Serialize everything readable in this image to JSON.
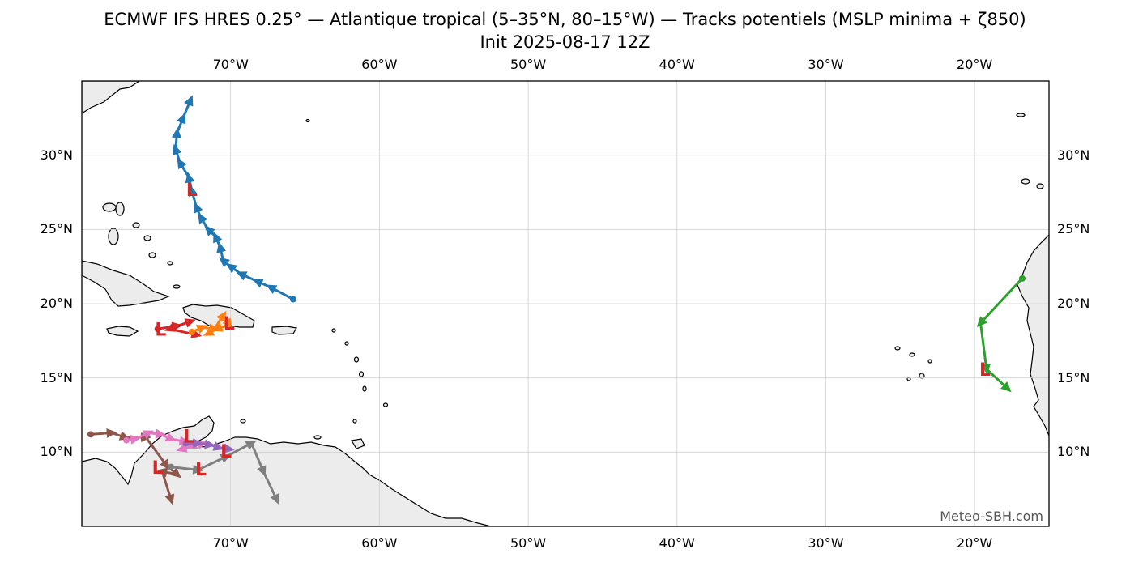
{
  "title": {
    "line1": "ECMWF IFS HRES 0.25° — Atlantique tropical (5–35°N, 80–15°W) — Tracks potentiels (MSLP minima + ζ850)",
    "line2": "Init 2025-08-17 12Z"
  },
  "map": {
    "extent": {
      "lon": [
        -80,
        -15
      ],
      "lat": [
        5,
        35
      ]
    },
    "land_color": "#ececec",
    "coast_color": "#000000",
    "grid_color": "#d0d0d0",
    "lon_ticks": [
      {
        "lon": -70,
        "label": "70°W"
      },
      {
        "lon": -60,
        "label": "60°W"
      },
      {
        "lon": -50,
        "label": "50°W"
      },
      {
        "lon": -40,
        "label": "40°W"
      },
      {
        "lon": -30,
        "label": "30°W"
      },
      {
        "lon": -20,
        "label": "20°W"
      }
    ],
    "lat_ticks": [
      {
        "lat": 30,
        "label": "30°N"
      },
      {
        "lat": 25,
        "label": "25°N"
      },
      {
        "lat": 20,
        "label": "20°N"
      },
      {
        "lat": 15,
        "label": "15°N"
      },
      {
        "lat": 10,
        "label": "10°N"
      }
    ],
    "low_marker": {
      "symbol": "L",
      "color": "#d62728"
    },
    "credit": "Meteo-SBH.com"
  },
  "tracks": [
    {
      "color": "#1f77b4",
      "low": [
        -72.6,
        27.6
      ],
      "points": [
        [
          -65.8,
          20.3
        ],
        [
          -67.3,
          21.1
        ],
        [
          -68.2,
          21.5
        ],
        [
          -69.3,
          22.0
        ],
        [
          -70.0,
          22.5
        ],
        [
          -70.5,
          22.9
        ],
        [
          -70.7,
          23.8
        ],
        [
          -71.0,
          24.5
        ],
        [
          -71.5,
          25.0
        ],
        [
          -72.0,
          25.8
        ],
        [
          -72.3,
          26.5
        ],
        [
          -72.6,
          27.6
        ],
        [
          -72.8,
          28.5
        ],
        [
          -73.4,
          29.5
        ],
        [
          -73.7,
          30.4
        ],
        [
          -73.6,
          31.5
        ],
        [
          -73.2,
          32.5
        ],
        [
          -72.7,
          33.7
        ]
      ]
    },
    {
      "color": "#d62728",
      "low": [
        -74.7,
        18.2
      ],
      "points": [
        [
          -74.9,
          18.3
        ],
        [
          -73.6,
          18.5
        ],
        [
          -72.7,
          18.8
        ],
        [
          -74.1,
          18.3
        ],
        [
          -72.3,
          17.9
        ]
      ]
    },
    {
      "color": "#ff7f0e",
      "low": [
        -70.1,
        18.6
      ],
      "points": [
        [
          -72.6,
          18.1
        ],
        [
          -71.9,
          18.4
        ],
        [
          -71.1,
          18.3
        ],
        [
          -70.5,
          19.2
        ],
        [
          -70.1,
          18.6
        ],
        [
          -70.9,
          18.3
        ],
        [
          -71.5,
          18.0
        ]
      ]
    },
    {
      "color": "#2ca02c",
      "low": [
        -19.3,
        15.5
      ],
      "points": [
        [
          -16.8,
          21.7
        ],
        [
          -19.6,
          18.7
        ],
        [
          -19.2,
          15.6
        ],
        [
          -17.8,
          14.3
        ]
      ]
    },
    {
      "color": "#8c564b",
      "low": [
        -74.9,
        8.9
      ],
      "points": [
        [
          -79.4,
          11.2
        ],
        [
          -78.0,
          11.3
        ],
        [
          -77.1,
          11.0
        ],
        [
          -75.7,
          11.0
        ],
        [
          -74.3,
          9.1
        ],
        [
          -73.6,
          8.5
        ],
        [
          -74.6,
          8.7
        ],
        [
          -74.0,
          6.8
        ]
      ]
    },
    {
      "color": "#e377c2",
      "low": [
        -72.8,
        11.0
      ],
      "points": [
        [
          -77.0,
          10.8
        ],
        [
          -76.4,
          10.9
        ],
        [
          -75.5,
          11.3
        ],
        [
          -74.7,
          11.2
        ],
        [
          -74.0,
          10.9
        ],
        [
          -73.1,
          10.7
        ],
        [
          -72.5,
          10.4
        ],
        [
          -71.9,
          10.6
        ],
        [
          -73.3,
          10.2
        ]
      ]
    },
    {
      "color": "#9467bd",
      "low": [
        -70.3,
        10.0
      ],
      "points": [
        [
          -73.0,
          10.6
        ],
        [
          -72.2,
          10.6
        ],
        [
          -71.4,
          10.5
        ],
        [
          -70.8,
          10.3
        ],
        [
          -70.1,
          10.2
        ]
      ]
    },
    {
      "color": "#7f7f7f",
      "low": [
        -72.0,
        8.8
      ],
      "points": [
        [
          -74.0,
          9.0
        ],
        [
          -72.2,
          8.8
        ],
        [
          -70.3,
          9.7
        ],
        [
          -68.6,
          10.6
        ],
        [
          -67.8,
          8.7
        ],
        [
          -66.9,
          6.8
        ]
      ]
    }
  ]
}
